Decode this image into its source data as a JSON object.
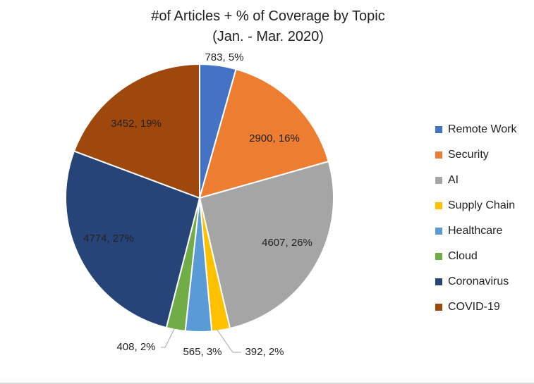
{
  "chart_data": {
    "type": "pie",
    "title_line1": "#of Articles + % of Coverage by Topic",
    "title_line2": "(Jan. - Mar. 2020)",
    "series": [
      {
        "name": "Remote Work",
        "value": 783,
        "label": "783, 5%",
        "color": "#4472C4"
      },
      {
        "name": "Security",
        "value": 2900,
        "label": "2900, 16%",
        "color": "#ED7D31"
      },
      {
        "name": "AI",
        "value": 4607,
        "label": "4607, 26%",
        "color": "#A5A5A5"
      },
      {
        "name": "Supply Chain",
        "value": 392,
        "label": "392, 2%",
        "color": "#FFC000"
      },
      {
        "name": "Healthcare",
        "value": 565,
        "label": "565, 3%",
        "color": "#5B9BD5"
      },
      {
        "name": "Cloud",
        "value": 408,
        "label": "408, 2%",
        "color": "#70AD47"
      },
      {
        "name": "Coronavirus",
        "value": 4774,
        "label": "4774, 27%",
        "color": "#264478"
      },
      {
        "name": "COVID-19",
        "value": 3452,
        "label": "3452, 19%",
        "color": "#9E480E"
      }
    ],
    "legend_position": "right"
  }
}
